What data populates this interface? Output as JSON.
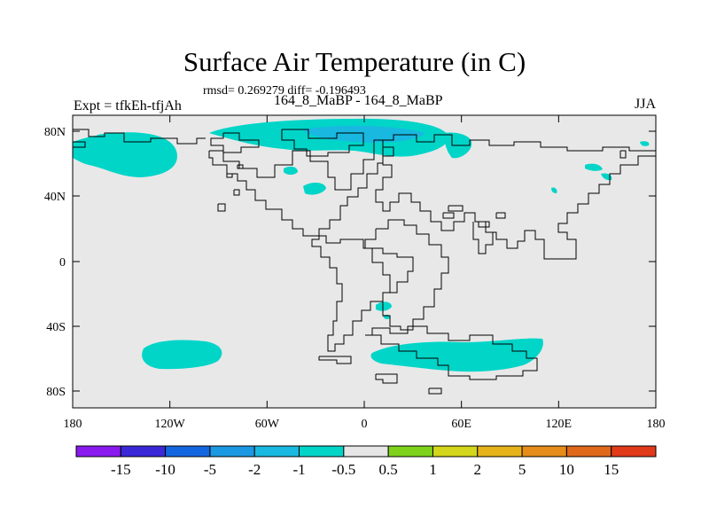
{
  "header": {
    "title": "Surface Air Temperature (in C)",
    "stats": "rmsd= 0.269279 diff= -0.196493",
    "experiment": "Expt = tfkEh-tfjAh",
    "comparison": "164_8_MaBP - 164_8_MaBP",
    "season": "JJA"
  },
  "map": {
    "land_fill": "#e8e8e8",
    "coast_color": "#000000",
    "lon_ticks": [
      "180",
      "120W",
      "60W",
      "0",
      "60E",
      "120E",
      "180"
    ],
    "lat_ticks": [
      "80N",
      "40N",
      "0",
      "40S",
      "80S"
    ],
    "anomaly_regions": [
      {
        "name": "north-atlantic-arctic",
        "category": "-1 to -0.5",
        "color": "#00d5c8"
      },
      {
        "name": "north-pacific",
        "category": "-1 to -0.5",
        "color": "#00d5c8"
      },
      {
        "name": "south-pacific",
        "category": "-1 to -0.5",
        "color": "#00d5c8"
      },
      {
        "name": "southern-ocean",
        "category": "-1 to -0.5",
        "color": "#00d5c8"
      },
      {
        "name": "central-arctic-core",
        "category": "-2 to -1",
        "color": "#19b8e0"
      }
    ]
  },
  "colorbar": {
    "colors": [
      "#8a1aef",
      "#3a28d8",
      "#1466e0",
      "#1a98e2",
      "#19b8e0",
      "#00d5c8",
      "#e6e6e6",
      "#7ed31a",
      "#d3d61a",
      "#e6b31a",
      "#e68c1a",
      "#e0681a",
      "#e03a1a"
    ],
    "labels": [
      "-15",
      "-10",
      "-5",
      "-2",
      "-1",
      "-0.5",
      "0.5",
      "1",
      "2",
      "5",
      "10",
      "15"
    ]
  }
}
